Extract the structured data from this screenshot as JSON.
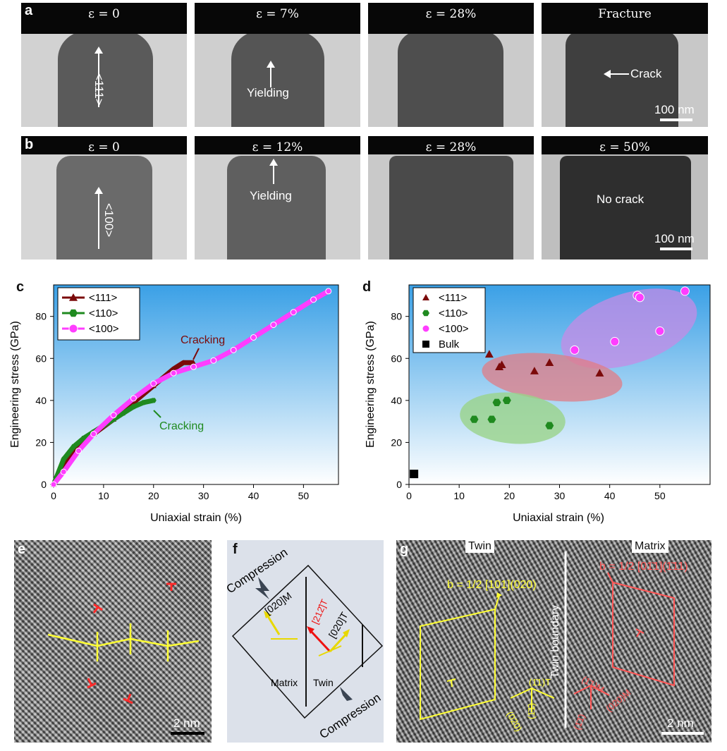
{
  "panel_labels": {
    "a": "a",
    "b": "b",
    "c": "c",
    "d": "d",
    "e": "e",
    "f": "f",
    "g": "g"
  },
  "row_a": {
    "frames": [
      {
        "header": "ε = 0",
        "annotation": "<111>"
      },
      {
        "header": "ε = 7%",
        "annotation": "Yielding"
      },
      {
        "header": "ε = 28%",
        "annotation": ""
      },
      {
        "header": "Fracture",
        "annotation": "Crack"
      }
    ],
    "scale_bar": "100 nm"
  },
  "row_b": {
    "frames": [
      {
        "header": "ε = 0",
        "annotation": "<100>"
      },
      {
        "header": "ε = 12%",
        "annotation": "Yielding"
      },
      {
        "header": "ε = 28%",
        "annotation": ""
      },
      {
        "header": "ε  = 50%",
        "annotation": "No crack"
      }
    ],
    "scale_bar": "100 nm"
  },
  "colors": {
    "c111": "#7b0a0a",
    "c110": "#1f8a1f",
    "c100": "#ff3dff",
    "bulk": "#000000",
    "bg_top": "#3aa0e6",
    "bg_bottom": "#ffffff"
  },
  "chart_data": [
    {
      "type": "line",
      "xlabel": "Uniaxial strain (%)",
      "ylabel": "Engineering stress (GPa)",
      "xlim": [
        0,
        57
      ],
      "ylim": [
        0,
        95
      ],
      "xticks": [
        0,
        10,
        20,
        30,
        40,
        50
      ],
      "yticks": [
        0,
        20,
        40,
        60,
        80
      ],
      "legend": "top-left",
      "annotations": [
        {
          "text": "Cracking",
          "series": "<111>",
          "at": [
            28,
            58
          ]
        },
        {
          "text": "Cracking",
          "series": "<110>",
          "at": [
            20,
            40
          ]
        }
      ],
      "series": [
        {
          "name": "<111>",
          "color": "#7b0a0a",
          "x": [
            0,
            2,
            5,
            8,
            12,
            16,
            20,
            24,
            26,
            28
          ],
          "y": [
            0,
            10,
            18,
            24,
            31,
            39,
            47,
            55,
            58,
            58
          ]
        },
        {
          "name": "<110>",
          "color": "#1f8a1f",
          "x": [
            0,
            2,
            4,
            6,
            8,
            10,
            12,
            14,
            16,
            18,
            20
          ],
          "y": [
            0,
            12,
            18,
            22,
            25,
            28,
            31,
            34,
            37,
            39,
            40
          ]
        },
        {
          "name": "<100>",
          "color": "#ff3dff",
          "x": [
            0,
            2,
            5,
            8,
            12,
            16,
            20,
            24,
            28,
            32,
            36,
            40,
            44,
            48,
            52,
            55
          ],
          "y": [
            0,
            6,
            16,
            24,
            33,
            41,
            48,
            53,
            56,
            59,
            64,
            70,
            76,
            82,
            88,
            92
          ]
        }
      ]
    },
    {
      "type": "scatter",
      "xlabel": "Uniaxial strain (%)",
      "ylabel": "Engineering stress (GPa)",
      "xlim": [
        0,
        60
      ],
      "ylim": [
        0,
        95
      ],
      "xticks": [
        0,
        10,
        20,
        30,
        40,
        50
      ],
      "yticks": [
        0,
        20,
        40,
        60,
        80
      ],
      "legend": "top-left",
      "series": [
        {
          "name": "<111>",
          "color": "#7b0a0a",
          "marker": "triangle",
          "x": [
            16,
            18,
            18.5,
            25,
            28,
            38
          ],
          "y": [
            62,
            56,
            57,
            54,
            58,
            53
          ]
        },
        {
          "name": "<110>",
          "color": "#1f8a1f",
          "marker": "hexagon",
          "x": [
            13,
            16.5,
            17.5,
            19.5,
            28
          ],
          "y": [
            31,
            31,
            39,
            40,
            28
          ]
        },
        {
          "name": "<100>",
          "color": "#ff3dff",
          "marker": "sphere",
          "x": [
            33,
            41,
            45.5,
            46,
            50,
            55
          ],
          "y": [
            64,
            68,
            90,
            89,
            73,
            92
          ]
        },
        {
          "name": "Bulk",
          "color": "#000000",
          "marker": "square",
          "x": [
            1
          ],
          "y": [
            5
          ]
        }
      ]
    }
  ],
  "panel_e": {
    "scale_bar": "2 nm"
  },
  "panel_f": {
    "compression_top": "Compression",
    "compression_bottom": "Compression",
    "matrix": "Matrix",
    "twin": "Twin",
    "vec_m": "[020]M",
    "vec_t1": "[212̄]T",
    "vec_t2": "[020]T"
  },
  "panel_g": {
    "twin": "Twin",
    "matrix": "Matrix",
    "twin_boundary": "Twin boundary",
    "burgers_twin": "b = 1/2 [101](020)",
    "burgers_matrix": "b = 1/2 [01̄1](1̄11)",
    "idx_twin": [
      "(1̄1)T",
      "(020)",
      "(1̄1̄)"
    ],
    "idx_matrix": [
      "(1̄1)M",
      "(020)M",
      "(1̄1̄)"
    ],
    "scale_bar": "2 nm"
  }
}
